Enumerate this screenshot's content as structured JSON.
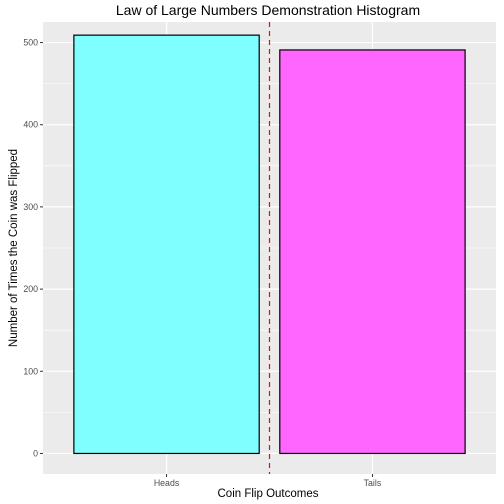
{
  "chart_data": {
    "type": "bar",
    "title": "Law of Large Numbers Demonstration Histogram",
    "xlabel": "Coin Flip Outcomes",
    "ylabel": "Number of Times the Coin was Flipped",
    "categories": [
      "Heads",
      "Tails"
    ],
    "values": [
      509,
      491
    ],
    "colors": [
      "#7fffff",
      "#ff66ff"
    ],
    "ylim": [
      -25,
      525
    ],
    "yticks": [
      0,
      100,
      200,
      300,
      400,
      500
    ],
    "grid": true,
    "panel_background": "#ebebeb",
    "reference_line": {
      "x_position": 1.5,
      "color": "#ff0000",
      "style": "dashed"
    }
  }
}
